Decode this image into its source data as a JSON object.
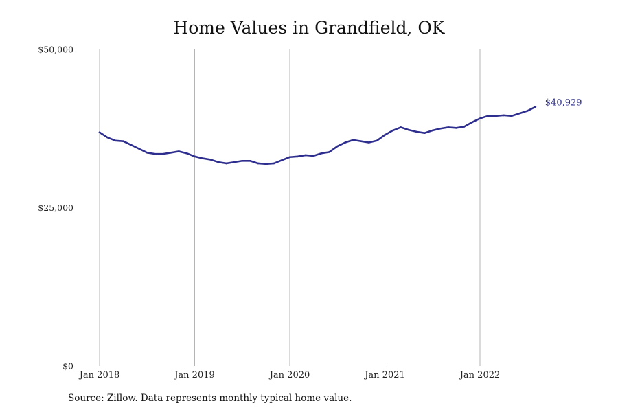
{
  "title": "Home Values in Grandfield, OK",
  "source": "Source: Zillow. Data represents monthly typical home value.",
  "colors": {
    "line": "#2e2e8f",
    "grid": "#b4b4b4",
    "end_label": "#2e2e8f"
  },
  "chart_data": {
    "type": "line",
    "title": "Home Values in Grandfield, OK",
    "xlabel": "",
    "ylabel": "",
    "ylim": [
      0,
      50000
    ],
    "yticks": [
      0,
      25000,
      50000
    ],
    "ytick_labels": [
      "$0",
      "$25,000",
      "$50,000"
    ],
    "xticks": [
      "2018-01",
      "2019-01",
      "2020-01",
      "2021-01",
      "2022-01"
    ],
    "xtick_labels": [
      "Jan 2018",
      "Jan 2019",
      "Jan 2020",
      "Jan 2021",
      "Jan 2022"
    ],
    "grid": "vertical lines at x ticks",
    "end_label": "$40,929",
    "series": [
      {
        "x": [
          "2018-01",
          "2018-02",
          "2018-03",
          "2018-04",
          "2018-05",
          "2018-06",
          "2018-07",
          "2018-08",
          "2018-09",
          "2018-10",
          "2018-11",
          "2018-12",
          "2019-01",
          "2019-02",
          "2019-03",
          "2019-04",
          "2019-05",
          "2019-06",
          "2019-07",
          "2019-08",
          "2019-09",
          "2019-10",
          "2019-11",
          "2019-12",
          "2020-01",
          "2020-02",
          "2020-03",
          "2020-04",
          "2020-05",
          "2020-06",
          "2020-07",
          "2020-08",
          "2020-09",
          "2020-10",
          "2020-11",
          "2020-12",
          "2021-01",
          "2021-02",
          "2021-03",
          "2021-04",
          "2021-05",
          "2021-06",
          "2021-07",
          "2021-08",
          "2021-09",
          "2021-10",
          "2021-11",
          "2021-12",
          "2022-01",
          "2022-02",
          "2022-03",
          "2022-04",
          "2022-05",
          "2022-06",
          "2022-07",
          "2022-08"
        ],
        "values": [
          36900,
          36100,
          35600,
          35500,
          34900,
          34300,
          33700,
          33500,
          33500,
          33700,
          33900,
          33600,
          33100,
          32800,
          32600,
          32200,
          32000,
          32200,
          32400,
          32400,
          32000,
          31900,
          32000,
          32500,
          33000,
          33100,
          33300,
          33200,
          33600,
          33800,
          34700,
          35300,
          35700,
          35500,
          35300,
          35600,
          36500,
          37200,
          37700,
          37300,
          37000,
          36800,
          37200,
          37500,
          37700,
          37600,
          37800,
          38500,
          39100,
          39500,
          39500,
          39600,
          39500,
          39900,
          40300,
          40929
        ]
      }
    ]
  }
}
